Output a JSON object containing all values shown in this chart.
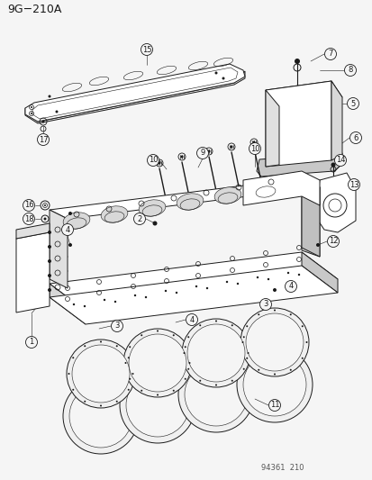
{
  "title": "9G−210A",
  "catalog_number": "94361  210",
  "bg_color": "#f5f5f5",
  "line_color": "#1a1a1a",
  "text_color": "#1a1a1a",
  "title_fontsize": 9,
  "label_fontsize": 6,
  "catalog_fontsize": 6,
  "lw_main": 0.7,
  "lw_thin": 0.4,
  "lw_thick": 1.0,
  "circle_r": 6.5
}
